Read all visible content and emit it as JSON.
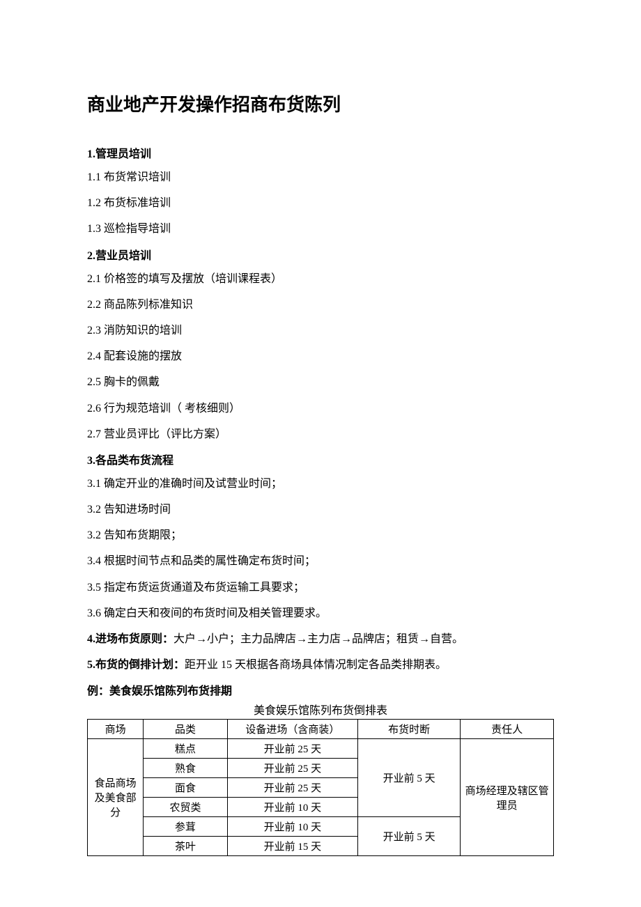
{
  "title": "商业地产开发操作招商布货陈列",
  "sections": {
    "s1": {
      "heading": "1.管理员培训",
      "items": [
        "1.1 布货常识培训",
        "1.2 布货标准培训",
        "1.3 巡检指导培训"
      ]
    },
    "s2": {
      "heading": "2.营业员培训",
      "items": [
        "2.1 价格签的填写及摆放（培训课程表）",
        "2.2 商品陈列标准知识",
        "2.3 消防知识的培训",
        "2.4 配套设施的摆放",
        "2.5 胸卡的佩戴",
        "2.6 行为规范培训（ 考核细则）",
        "2.7 营业员评比（评比方案）"
      ]
    },
    "s3": {
      "heading": "3.各品类布货流程",
      "items": [
        "3.1 确定开业的准确时间及试营业时间；",
        "3.2 告知进场时间",
        "3.2 告知布货期限；",
        "3.4 根据时间节点和品类的属性确定布货时间；",
        "3.5 指定布货运货通道及布货运输工具要求；",
        "3.6 确定白天和夜间的布货时间及相关管理要求。"
      ]
    },
    "s4": {
      "label": "4.进场布货原则：",
      "text": "大户→小户；主力品牌店→主力店→品牌店；租赁→自营。"
    },
    "s5": {
      "label": "5.布货的倒排计划：",
      "text": "距开业 15 天根据各商场具体情况制定各品类排期表。"
    }
  },
  "example": {
    "heading": "例：美食娱乐馆陈列布货排期",
    "caption": "美食娱乐馆陈列布货倒排表",
    "table": {
      "header": [
        "商场",
        "品类",
        "设备进场（含商装）",
        "布货时断",
        "责任人"
      ],
      "mall": "食品商场及美食部分",
      "responsible": "商场经理及辖区管理员",
      "rows": [
        {
          "category": "糕点",
          "equipment": "开业前 25 天"
        },
        {
          "category": "熟食",
          "equipment": "开业前 25 天"
        },
        {
          "category": "面食",
          "equipment": "开业前 25 天"
        },
        {
          "category": "农贸类",
          "equipment": "开业前 10 天"
        },
        {
          "category": "参茸",
          "equipment": "开业前 10 天"
        },
        {
          "category": "茶叶",
          "equipment": "开业前 15 天"
        }
      ],
      "stock_time_group1": "开业前 5 天",
      "stock_time_group2": "开业前 5 天"
    }
  }
}
